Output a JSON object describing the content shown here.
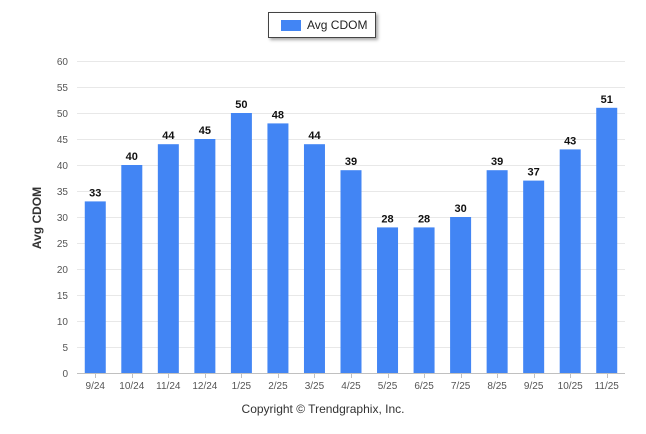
{
  "chart_data": {
    "type": "bar",
    "categories": [
      "9/24",
      "10/24",
      "11/24",
      "12/24",
      "1/25",
      "2/25",
      "3/25",
      "4/25",
      "5/25",
      "6/25",
      "7/25",
      "8/25",
      "9/25",
      "10/25",
      "11/25"
    ],
    "series": [
      {
        "name": "Avg CDOM",
        "values": [
          33,
          40,
          44,
          45,
          50,
          48,
          44,
          39,
          28,
          28,
          30,
          39,
          37,
          43,
          51
        ],
        "color": "#4285f4"
      }
    ],
    "ylabel": "Avg CDOM",
    "xlabel": "",
    "ylim": [
      0,
      60
    ],
    "yticks": [
      0,
      5,
      10,
      15,
      20,
      25,
      30,
      35,
      40,
      45,
      50,
      55,
      60
    ],
    "grid": true,
    "legend": "top-center",
    "data_labels": true
  },
  "legend": {
    "label": "Avg CDOM",
    "color": "#4285f4"
  },
  "axis": {
    "ylabel": "Avg CDOM"
  },
  "footer": {
    "copyright": "Copyright © Trendgraphix, Inc."
  }
}
